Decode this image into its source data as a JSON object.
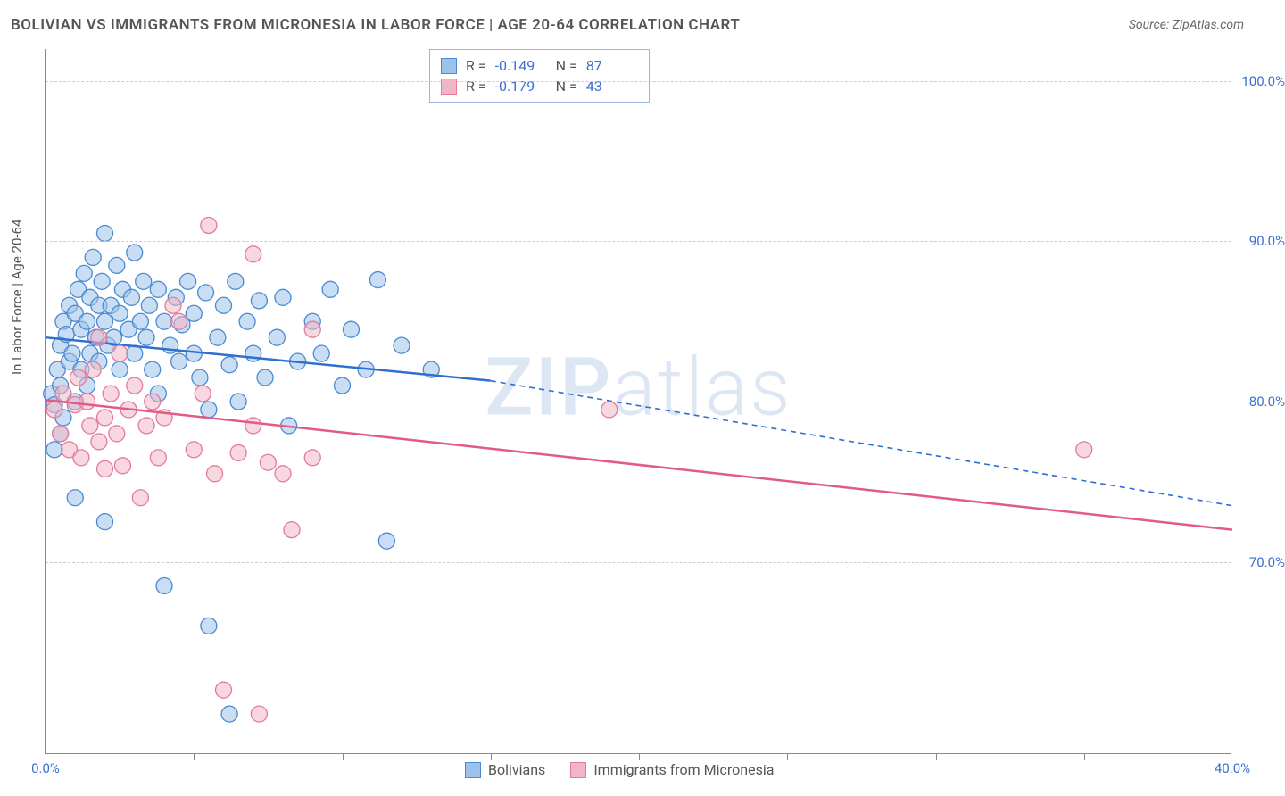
{
  "header": {
    "title": "BOLIVIAN VS IMMIGRANTS FROM MICRONESIA IN LABOR FORCE | AGE 20-64 CORRELATION CHART",
    "source": "Source: ZipAtlas.com"
  },
  "chart": {
    "type": "scatter",
    "ylabel": "In Labor Force | Age 20-64",
    "xlim": [
      0,
      40
    ],
    "ylim": [
      58,
      102
    ],
    "xticks": [
      0,
      40
    ],
    "xtick_minor": [
      5,
      10,
      15,
      20,
      25,
      30,
      35
    ],
    "yticks": [
      70,
      80,
      90,
      100
    ],
    "grid_color": "#cccccc",
    "background_color": "#ffffff",
    "axis_color": "#888888",
    "tick_label_color": "#3b6fd4",
    "tick_label_fontsize": 15,
    "ylabel_fontsize": 15,
    "marker_radius": 9,
    "marker_opacity": 0.55,
    "line_width": 2.5,
    "watermark": "ZIPatlas",
    "series": [
      {
        "id": "bolivians",
        "label": "Bolivians",
        "color_fill": "#9cc2ea",
        "color_stroke": "#4a8ad4",
        "line_color": "#2e6fd0",
        "R": "-0.149",
        "N": "87",
        "trend": {
          "x1": 0,
          "y1": 84.0,
          "x2": 15,
          "y2": 81.3,
          "ext_x2": 40,
          "ext_y2": 73.5
        },
        "points": [
          [
            0.2,
            80.5
          ],
          [
            0.3,
            79.8
          ],
          [
            0.4,
            82.0
          ],
          [
            0.5,
            83.5
          ],
          [
            0.5,
            81.0
          ],
          [
            0.6,
            85.0
          ],
          [
            0.6,
            79.0
          ],
          [
            0.7,
            84.2
          ],
          [
            0.8,
            86.0
          ],
          [
            0.8,
            82.5
          ],
          [
            0.9,
            83.0
          ],
          [
            1.0,
            85.5
          ],
          [
            1.0,
            80.0
          ],
          [
            1.1,
            87.0
          ],
          [
            1.2,
            84.5
          ],
          [
            1.2,
            82.0
          ],
          [
            1.3,
            88.0
          ],
          [
            1.4,
            85.0
          ],
          [
            1.4,
            81.0
          ],
          [
            1.5,
            86.5
          ],
          [
            1.5,
            83.0
          ],
          [
            1.6,
            89.0
          ],
          [
            1.7,
            84.0
          ],
          [
            1.8,
            86.0
          ],
          [
            1.8,
            82.5
          ],
          [
            1.9,
            87.5
          ],
          [
            2.0,
            85.0
          ],
          [
            2.0,
            90.5
          ],
          [
            2.1,
            83.5
          ],
          [
            2.2,
            86.0
          ],
          [
            2.3,
            84.0
          ],
          [
            2.4,
            88.5
          ],
          [
            2.5,
            85.5
          ],
          [
            2.5,
            82.0
          ],
          [
            2.6,
            87.0
          ],
          [
            2.8,
            84.5
          ],
          [
            2.9,
            86.5
          ],
          [
            3.0,
            83.0
          ],
          [
            3.0,
            89.3
          ],
          [
            3.2,
            85.0
          ],
          [
            3.3,
            87.5
          ],
          [
            3.4,
            84.0
          ],
          [
            3.5,
            86.0
          ],
          [
            3.6,
            82.0
          ],
          [
            3.8,
            87.0
          ],
          [
            3.8,
            80.5
          ],
          [
            4.0,
            85.0
          ],
          [
            4.2,
            83.5
          ],
          [
            4.4,
            86.5
          ],
          [
            4.5,
            82.5
          ],
          [
            4.6,
            84.8
          ],
          [
            4.8,
            87.5
          ],
          [
            5.0,
            83.0
          ],
          [
            5.0,
            85.5
          ],
          [
            5.2,
            81.5
          ],
          [
            5.4,
            86.8
          ],
          [
            5.5,
            79.5
          ],
          [
            5.8,
            84.0
          ],
          [
            6.0,
            86.0
          ],
          [
            6.2,
            82.3
          ],
          [
            6.4,
            87.5
          ],
          [
            6.5,
            80.0
          ],
          [
            6.8,
            85.0
          ],
          [
            7.0,
            83.0
          ],
          [
            7.2,
            86.3
          ],
          [
            7.4,
            81.5
          ],
          [
            7.8,
            84.0
          ],
          [
            8.0,
            86.5
          ],
          [
            8.2,
            78.5
          ],
          [
            8.5,
            82.5
          ],
          [
            9.0,
            85.0
          ],
          [
            9.3,
            83.0
          ],
          [
            9.6,
            87.0
          ],
          [
            10.0,
            81.0
          ],
          [
            10.3,
            84.5
          ],
          [
            10.8,
            82.0
          ],
          [
            11.2,
            87.6
          ],
          [
            11.5,
            71.3
          ],
          [
            12.0,
            83.5
          ],
          [
            13.0,
            82.0
          ],
          [
            2.0,
            72.5
          ],
          [
            4.0,
            68.5
          ],
          [
            5.5,
            66.0
          ],
          [
            6.2,
            60.5
          ],
          [
            1.0,
            74.0
          ],
          [
            0.5,
            78.0
          ],
          [
            0.3,
            77.0
          ]
        ]
      },
      {
        "id": "micronesia",
        "label": "Immigrants from Micronesia",
        "color_fill": "#f1b6c6",
        "color_stroke": "#e47a9a",
        "line_color": "#e25a88",
        "R": "-0.179",
        "N": "43",
        "trend": {
          "x1": 0,
          "y1": 80.1,
          "x2": 40,
          "y2": 72.0,
          "ext_x2": 40,
          "ext_y2": 72.0
        },
        "points": [
          [
            0.3,
            79.5
          ],
          [
            0.5,
            78.0
          ],
          [
            0.6,
            80.5
          ],
          [
            0.8,
            77.0
          ],
          [
            1.0,
            79.8
          ],
          [
            1.1,
            81.5
          ],
          [
            1.2,
            76.5
          ],
          [
            1.4,
            80.0
          ],
          [
            1.5,
            78.5
          ],
          [
            1.6,
            82.0
          ],
          [
            1.8,
            77.5
          ],
          [
            1.8,
            84.0
          ],
          [
            2.0,
            79.0
          ],
          [
            2.0,
            75.8
          ],
          [
            2.2,
            80.5
          ],
          [
            2.4,
            78.0
          ],
          [
            2.5,
            83.0
          ],
          [
            2.6,
            76.0
          ],
          [
            2.8,
            79.5
          ],
          [
            3.0,
            81.0
          ],
          [
            3.2,
            74.0
          ],
          [
            3.4,
            78.5
          ],
          [
            3.6,
            80.0
          ],
          [
            3.8,
            76.5
          ],
          [
            4.0,
            79.0
          ],
          [
            4.3,
            86.0
          ],
          [
            4.5,
            85.0
          ],
          [
            5.0,
            77.0
          ],
          [
            5.3,
            80.5
          ],
          [
            5.7,
            75.5
          ],
          [
            5.5,
            91.0
          ],
          [
            7.0,
            89.2
          ],
          [
            6.5,
            76.8
          ],
          [
            7.0,
            78.5
          ],
          [
            7.5,
            76.2
          ],
          [
            8.0,
            75.5
          ],
          [
            8.3,
            72.0
          ],
          [
            9.0,
            76.5
          ],
          [
            9.0,
            84.5
          ],
          [
            19.0,
            79.5
          ],
          [
            35.0,
            77.0
          ],
          [
            6.0,
            62.0
          ],
          [
            7.2,
            60.5
          ]
        ]
      }
    ],
    "legend_bottom": [
      {
        "label": "Bolivians",
        "fill": "#9cc2ea",
        "stroke": "#4a8ad4"
      },
      {
        "label": "Immigrants from Micronesia",
        "fill": "#f1b6c6",
        "stroke": "#e47a9a"
      }
    ]
  }
}
